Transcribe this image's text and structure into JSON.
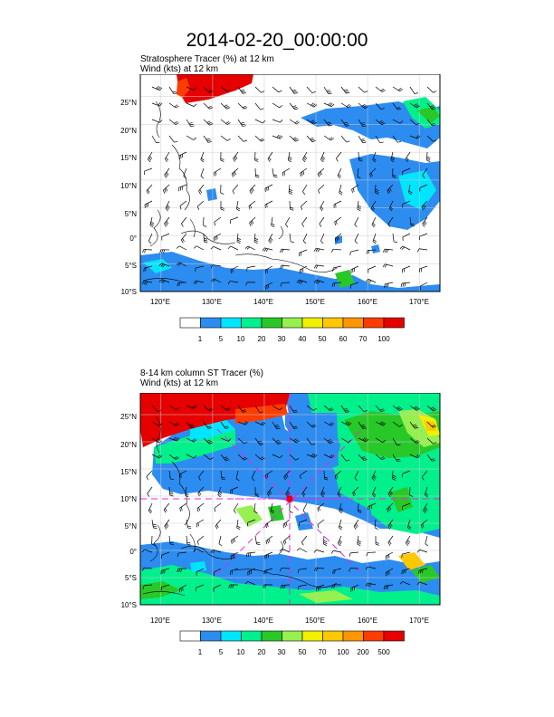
{
  "page_title": "2014-02-20_00:00:00",
  "colors": {
    "tracer_scale": [
      "#ffffff",
      "#2d8cf0",
      "#00e5ff",
      "#00f08c",
      "#28c828",
      "#96f050",
      "#f0f000",
      "#ffc800",
      "#ff9600",
      "#ff3c00",
      "#e60000"
    ],
    "contour": "#000000",
    "wind_barb": "#000000",
    "dashed_overlay": "#e628e6"
  },
  "panels": [
    {
      "label_line1": "Stratosphere Tracer   (%)    at   12 km",
      "label_line2": "Wind   (kts)     at   12 km",
      "lat_labels": [
        "25°N",
        "20°N",
        "15°N",
        "10°N",
        "5°N",
        "0°",
        "5°S",
        "10°S"
      ],
      "lon_labels": [
        "120°E",
        "130°E",
        "140°E",
        "150°E",
        "160°E",
        "170°E"
      ],
      "colorbar_labels": [
        "1",
        "5",
        "10",
        "20",
        "30",
        "40",
        "50",
        "60",
        "70",
        "100"
      ]
    },
    {
      "label_line1": "8-14 km column ST Tracer   (%)",
      "label_line2": "Wind   (kts)     at   12 km",
      "lat_labels": [
        "25°N",
        "20°N",
        "15°N",
        "10°N",
        "5°N",
        "0°",
        "5°S",
        "10°S"
      ],
      "lon_labels": [
        "120°E",
        "130°E",
        "140°E",
        "150°E",
        "160°E",
        "170°E"
      ],
      "colorbar_labels": [
        "1",
        "5",
        "10",
        "20",
        "30",
        "50",
        "70",
        "100",
        "200",
        "500"
      ]
    }
  ],
  "chart_data": {
    "type": "map",
    "map_extent": {
      "lon": [
        116,
        174
      ],
      "lat": [
        -10,
        29
      ]
    },
    "lat_ticks": [
      25,
      20,
      15,
      10,
      5,
      0,
      -5,
      -10
    ],
    "lon_ticks": [
      120,
      130,
      140,
      150,
      160,
      170
    ],
    "overlay_lines": {
      "latitude": 10,
      "longitude": 145
    }
  }
}
